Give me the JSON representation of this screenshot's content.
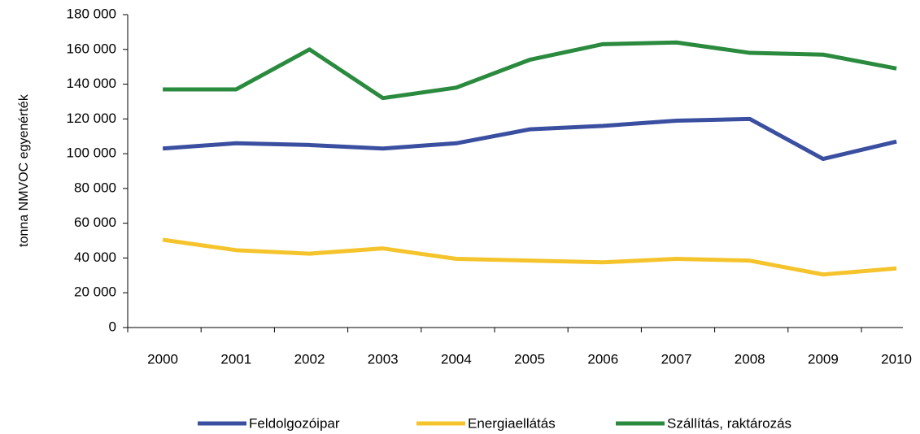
{
  "chart_data": {
    "type": "line",
    "y_label": "tonna NMVOC egyenérték",
    "categories": [
      "2000",
      "2001",
      "2002",
      "2003",
      "2004",
      "2005",
      "2006",
      "2007",
      "2008",
      "2009",
      "2010"
    ],
    "series": [
      {
        "name": "Feldolgozóipar",
        "color": "#3a4fa0",
        "values": [
          103000,
          106000,
          105000,
          103000,
          106000,
          114000,
          116000,
          119000,
          120000,
          97000,
          107000
        ]
      },
      {
        "name": "Energiaellátás",
        "color": "#f5c42c",
        "values": [
          50500,
          44500,
          42500,
          45500,
          39500,
          38500,
          37500,
          39500,
          38500,
          30500,
          34000
        ]
      },
      {
        "name": "Szállítás, raktározás",
        "color": "#2a8a3e",
        "values": [
          137000,
          137000,
          160000,
          132000,
          138000,
          154000,
          163000,
          164000,
          158000,
          157000,
          149000
        ]
      }
    ],
    "ylim": [
      0,
      180000
    ],
    "yticks": [
      0,
      {
        "value": 20000,
        "label": "20 000"
      },
      {
        "value": 40000,
        "label": "40 000"
      },
      {
        "value": 60000,
        "label": "60 000"
      },
      {
        "value": 80000,
        "label": "80 000"
      },
      {
        "value": 100000,
        "label": "100 000"
      },
      {
        "value": 120000,
        "label": "120 000"
      },
      {
        "value": 140000,
        "label": "140 000"
      },
      {
        "value": 160000,
        "label": "160 000"
      },
      {
        "value": 180000,
        "label": "180 000"
      }
    ],
    "legend": "bottom"
  }
}
